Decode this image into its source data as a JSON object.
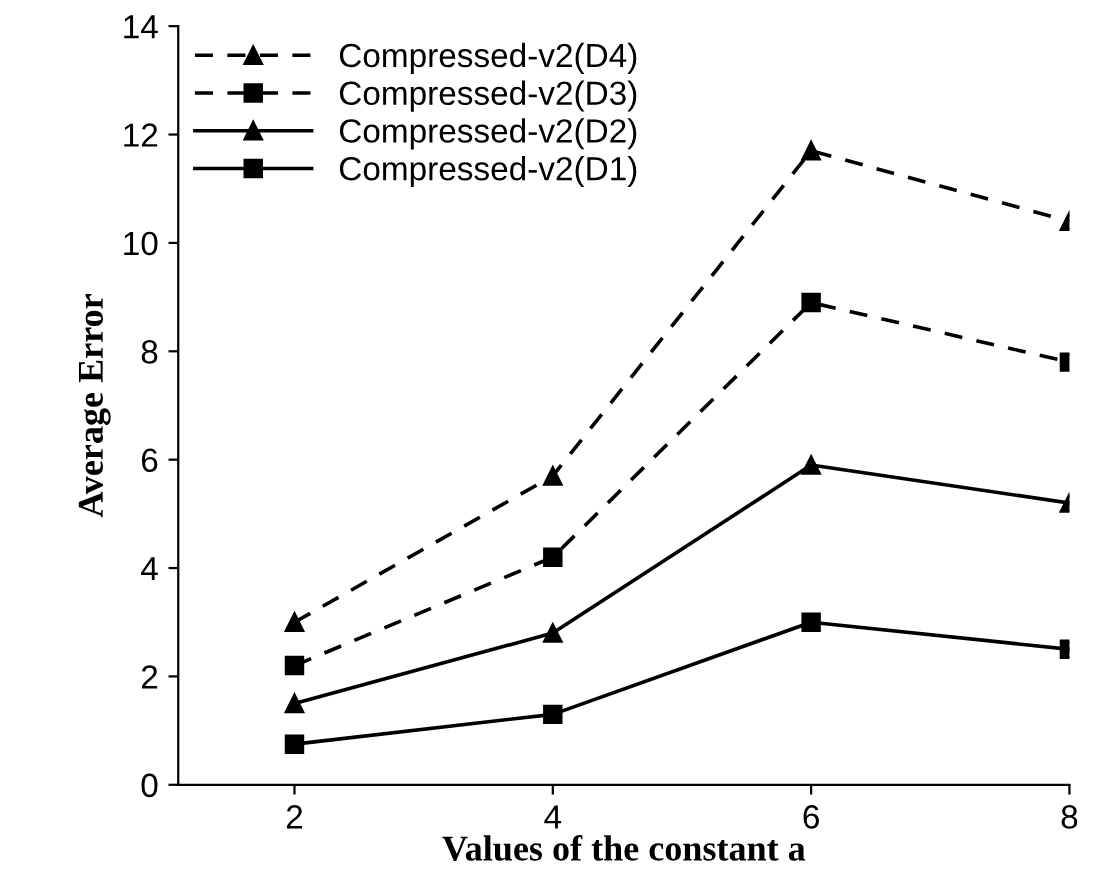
{
  "chart_data": {
    "type": "line",
    "xlabel": "Values of the constant a",
    "ylabel": "Average Error",
    "x": [
      2,
      4,
      6,
      8
    ],
    "xlim": [
      1.1,
      8
    ],
    "xticks": [
      2,
      4,
      6,
      8
    ],
    "ylim": [
      0,
      14
    ],
    "yticks": [
      0,
      2,
      4,
      6,
      8,
      10,
      12,
      14
    ],
    "grid": false,
    "legend": "top left",
    "series": [
      {
        "name": "Compressed-v2(D4)",
        "color": "#000000",
        "marker": "triangle",
        "line_style": "dashed",
        "values": [
          3.0,
          5.7,
          11.7,
          10.4
        ]
      },
      {
        "name": "Compressed-v2(D3)",
        "color": "#000000",
        "marker": "square",
        "line_style": "dashed",
        "values": [
          2.2,
          4.2,
          8.9,
          7.8
        ]
      },
      {
        "name": "Compressed-v2(D2)",
        "color": "#000000",
        "marker": "triangle",
        "line_style": "solid",
        "values": [
          1.5,
          2.8,
          5.9,
          5.2
        ]
      },
      {
        "name": "Compressed-v2(D1)",
        "color": "#000000",
        "marker": "square",
        "line_style": "solid",
        "values": [
          0.75,
          1.3,
          3.0,
          2.5
        ]
      }
    ]
  }
}
